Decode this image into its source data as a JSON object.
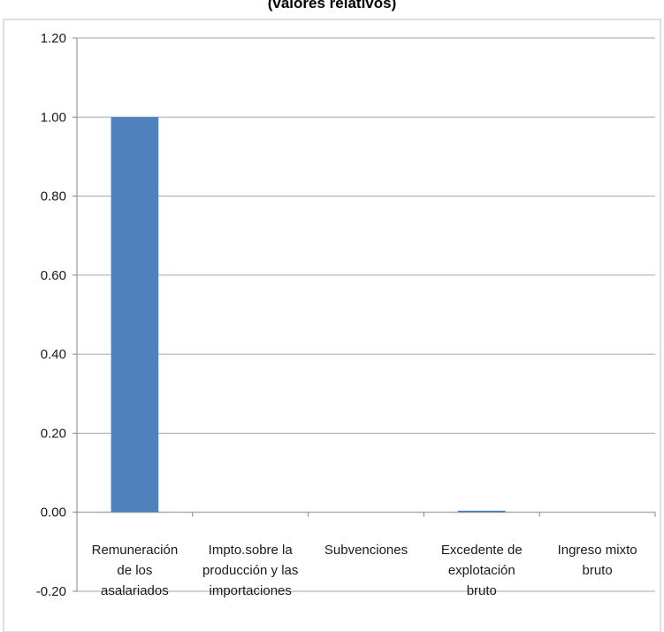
{
  "chart_data": {
    "type": "bar",
    "title": "(valores relativos)",
    "categories": [
      [
        "Remuneración",
        "de los",
        "asalariados"
      ],
      [
        "Impto.sobre la",
        "producción y las",
        "importaciones"
      ],
      [
        "Subvenciones"
      ],
      [
        "Excedente de",
        "explotación",
        "bruto"
      ],
      [
        "Ingreso mixto",
        "bruto"
      ]
    ],
    "values": [
      1.0,
      0.0,
      0.0,
      0.004,
      0.0
    ],
    "ylim": [
      -0.2,
      1.2
    ],
    "yticks": [
      "1.20",
      "1.00",
      "0.80",
      "0.60",
      "0.40",
      "0.20",
      "0.00",
      "-0.20"
    ],
    "grid": true,
    "colors": {
      "bar": "#4f81bd",
      "grid": "#a6a6a6",
      "axis": "#868686"
    }
  }
}
